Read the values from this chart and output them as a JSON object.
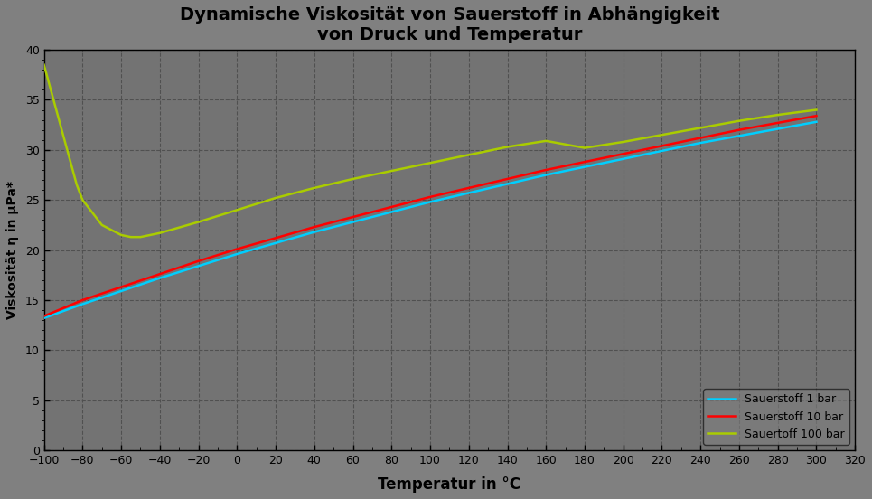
{
  "title": "Dynamische Viskosität von Sauerstoff in Abhängigkeit\nvon Druck und Temperatur",
  "xlabel": "Temperatur in °C",
  "ylabel": "Viskosität η in µPa*",
  "xlim": [
    -100,
    320
  ],
  "ylim": [
    0,
    40
  ],
  "xticks": [
    -100,
    -80,
    -60,
    -40,
    -20,
    0,
    20,
    40,
    60,
    80,
    100,
    120,
    140,
    160,
    180,
    200,
    220,
    240,
    260,
    280,
    300,
    320
  ],
  "yticks": [
    0,
    5,
    10,
    15,
    20,
    25,
    30,
    35,
    40
  ],
  "figure_bg": "#808080",
  "plot_bg": "#737373",
  "grid_color": "#505050",
  "title_color": "#000000",
  "axis_label_color": "#000000",
  "tick_label_color": "#000000",
  "line1_color": "#00CFFF",
  "line2_color": "#FF0000",
  "line3_color": "#AACC00",
  "line1_label": "Sauerstoff 1 bar",
  "line2_label": "Sauerstoff 10 bar",
  "line3_label": "Sauertoff 100 bar",
  "line_width": 1.8,
  "o2_1bar_T": [
    -100,
    -80,
    -60,
    -40,
    -20,
    0,
    20,
    40,
    60,
    80,
    100,
    120,
    140,
    160,
    180,
    200,
    220,
    240,
    260,
    280,
    300
  ],
  "o2_1bar_V": [
    13.2,
    14.6,
    15.9,
    17.2,
    18.4,
    19.6,
    20.7,
    21.8,
    22.8,
    23.8,
    24.8,
    25.7,
    26.6,
    27.5,
    28.3,
    29.1,
    29.9,
    30.7,
    31.4,
    32.1,
    32.8
  ],
  "o2_10bar_T": [
    -100,
    -80,
    -60,
    -40,
    -20,
    0,
    20,
    40,
    60,
    80,
    100,
    120,
    140,
    160,
    180,
    200,
    220,
    240,
    260,
    280,
    300
  ],
  "o2_10bar_V": [
    13.4,
    15.0,
    16.3,
    17.6,
    18.9,
    20.1,
    21.2,
    22.3,
    23.3,
    24.3,
    25.3,
    26.2,
    27.1,
    28.0,
    28.8,
    29.6,
    30.4,
    31.2,
    32.0,
    32.7,
    33.4
  ],
  "o2_100bar_T": [
    -100,
    -83,
    -80,
    -70,
    -60,
    -55,
    -50,
    -40,
    -20,
    0,
    20,
    40,
    60,
    80,
    100,
    120,
    140,
    160,
    180,
    200,
    220,
    240,
    260,
    280,
    300
  ],
  "o2_100bar_V": [
    38.5,
    26.5,
    25.0,
    22.5,
    21.5,
    21.3,
    21.3,
    21.7,
    22.8,
    24.0,
    25.2,
    26.2,
    27.1,
    27.9,
    28.7,
    29.5,
    30.3,
    30.9,
    30.2,
    30.8,
    31.5,
    32.2,
    32.9,
    33.5,
    34.0
  ]
}
